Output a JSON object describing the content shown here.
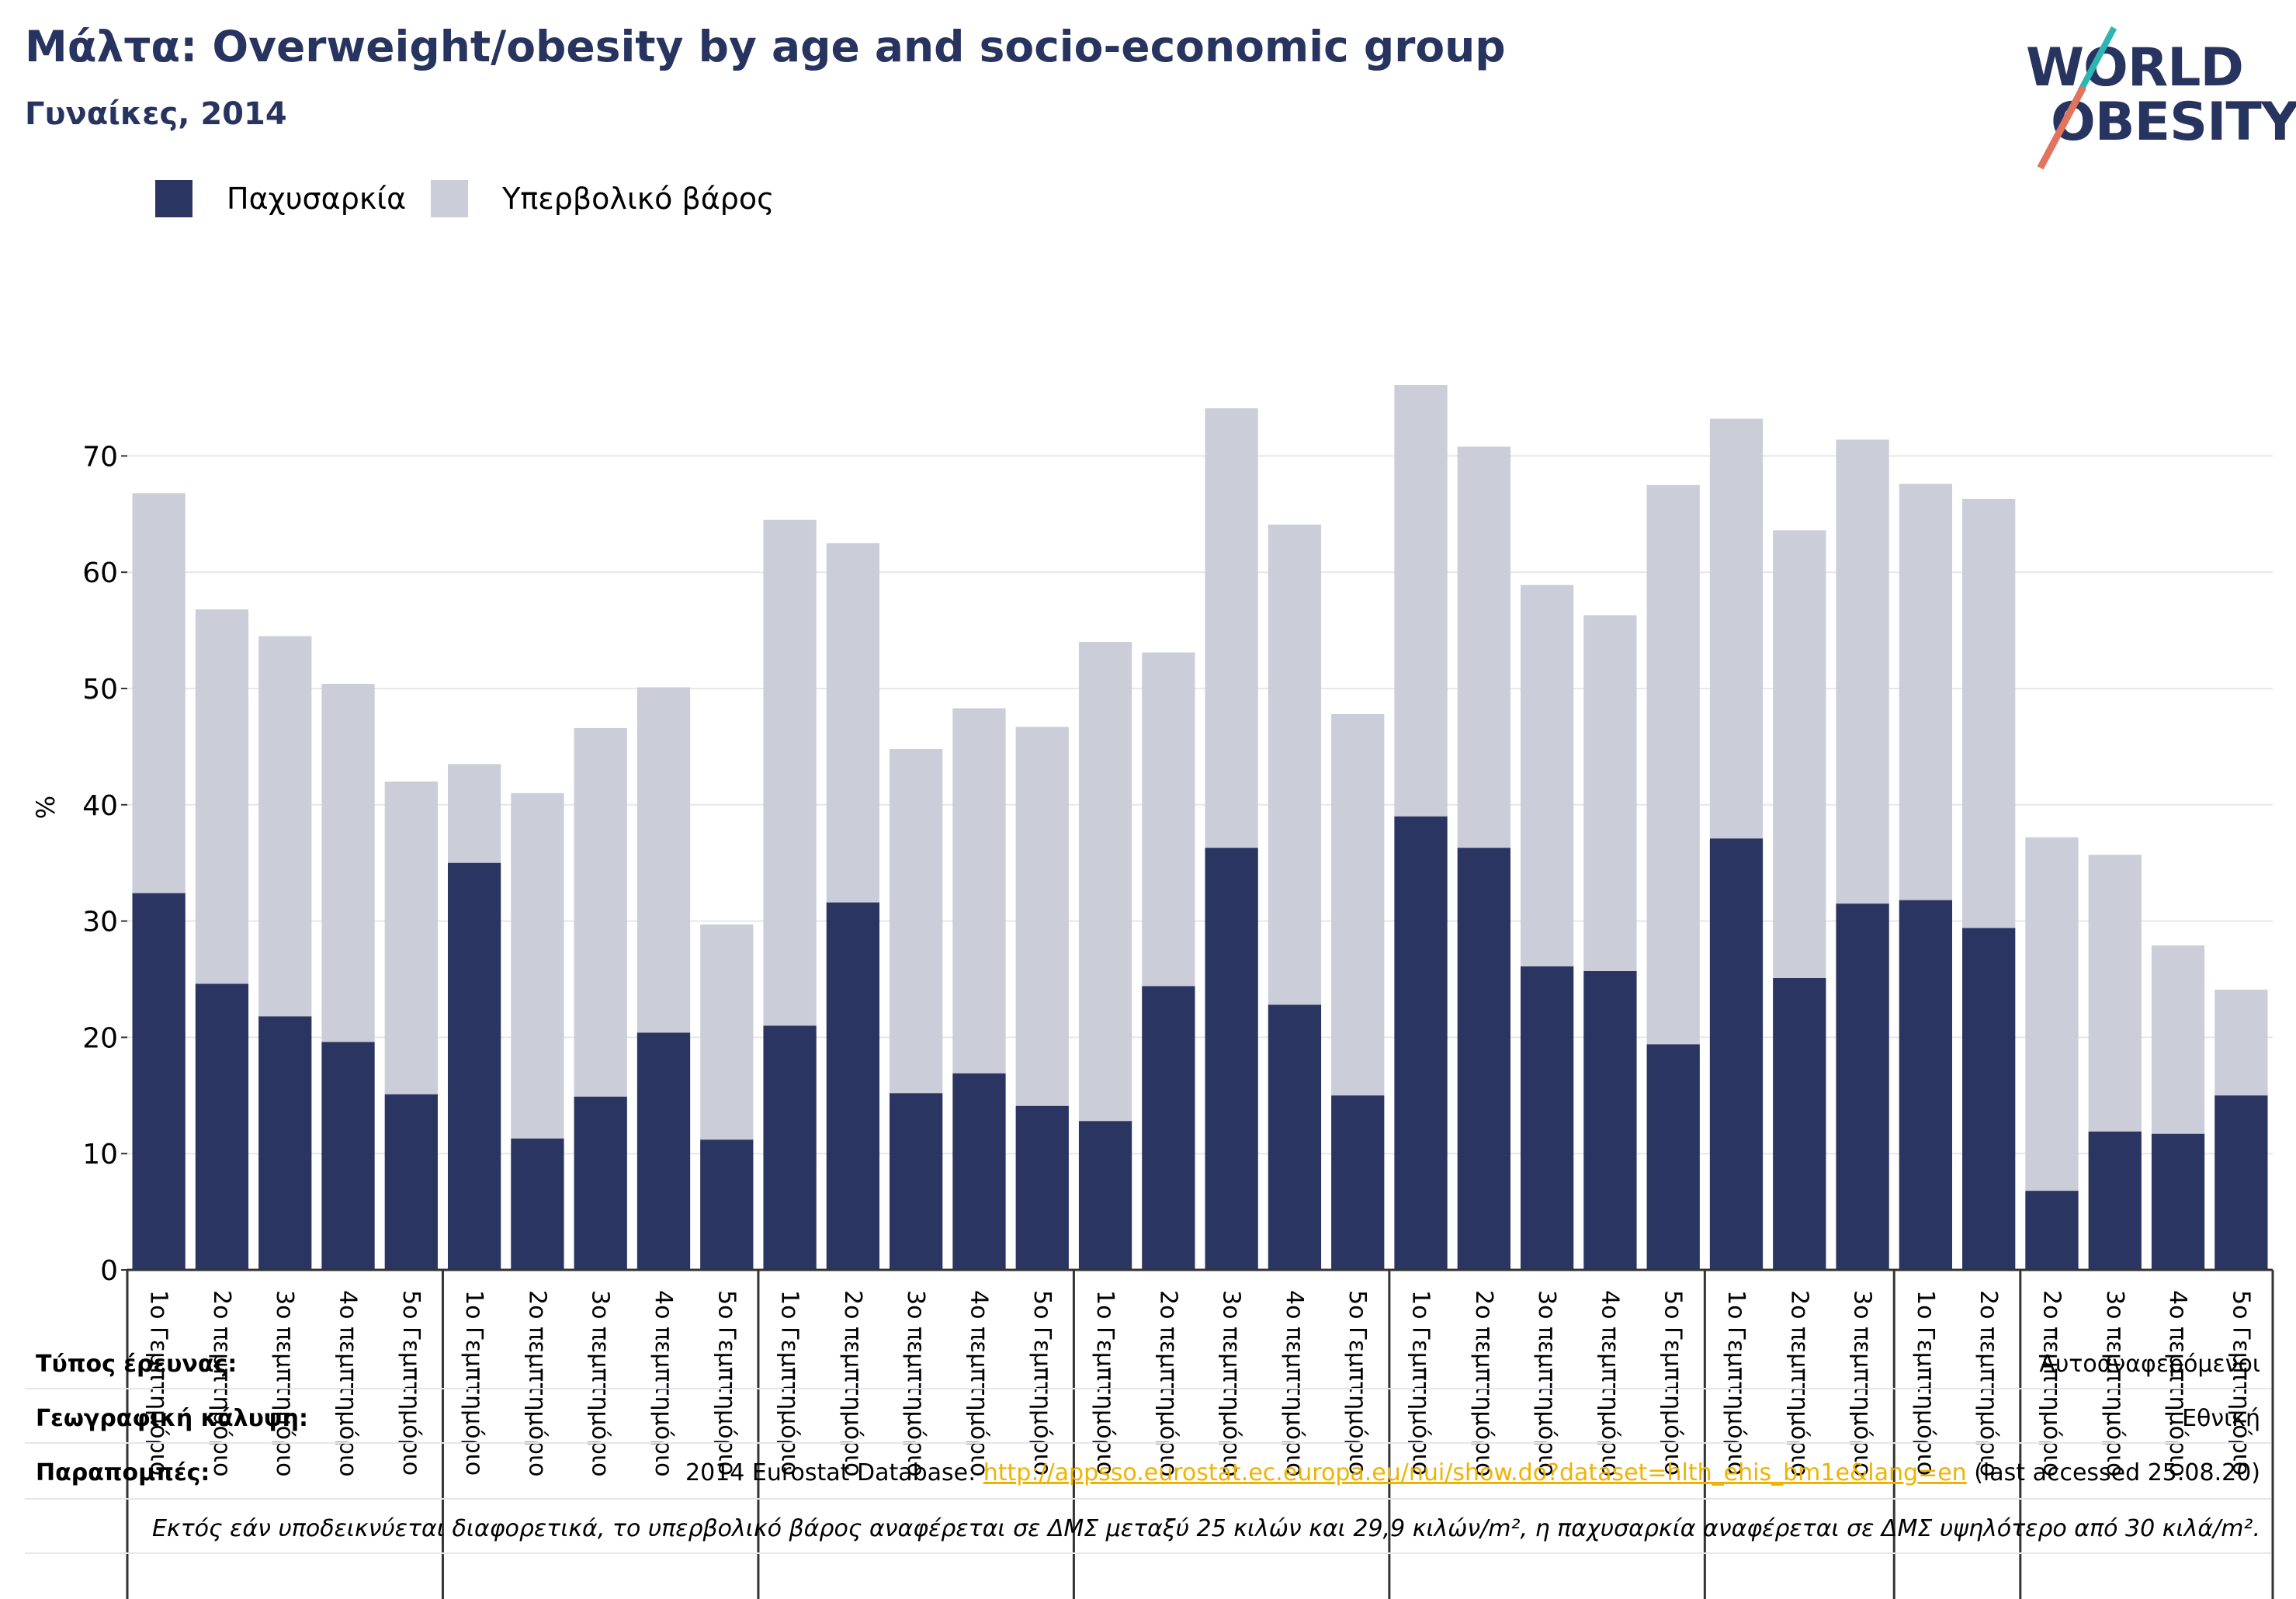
{
  "title": "Μάλτα: Overweight/obesity by age and socio-economic group",
  "subtitle": "Γυναίκες, 2014",
  "legend": {
    "obesity": "Παχυσαρκία",
    "overweight": "Υπερβολικό βάρος"
  },
  "colors": {
    "obesity": "#2b3561",
    "overweight": "#cbcdd9",
    "title": "#283460",
    "link": "#f0b300"
  },
  "logo": {
    "line1": "WORLD",
    "line2": "OBESITY"
  },
  "chart_data": {
    "type": "bar",
    "stacked": true,
    "ylabel": "%",
    "ylim": [
      0,
      76
    ],
    "yticks": [
      0,
      10,
      20,
      30,
      40,
      50,
      60,
      70
    ],
    "grid": true,
    "legend_position": "top-left",
    "categories": [
      "1ο Γεμπτημόριο",
      "2ο πεμπτημόριο",
      "3ο πεμπτημόριο",
      "4ο πεμπτημόριο",
      "5ο Γεμπτημόριο",
      "1ο Γεμπτημόριο",
      "2ο πεμπτημόριο",
      "3ο πεμπτημόριο",
      "4ο πεμπτημόριο",
      "5ο Γεμπτημόριο",
      "1ο Γεμπτημόριο",
      "2ο πεμπτημόριο",
      "3ο πεμπτημόριο",
      "4ο πεμπτημόριο",
      "5ο Γεμπτημόριο",
      "1ο Γεμπτημόριο",
      "2ο πεμπτημόριο",
      "3ο πεμπτημόριο",
      "4ο πεμπτημόριο",
      "5ο Γεμπτημόριο",
      "1ο Γεμπτημόριο",
      "2ο πεμπτημόριο",
      "3ο πεμπτημόριο",
      "4ο πεμπτημόριο",
      "5ο Γεμπτημόριο",
      "1ο Γεμπτημόριο",
      "2ο πεμπτημόριο",
      "3ο πεμπτημόριο",
      "1ο Γεμπτημόριο",
      "2ο πεμπτημόριο",
      "2ο πεμπτημόριο",
      "3ο πεμπτημόριο",
      "4ο πεμπτημόριο",
      "5ο Γεμπτημόριο"
    ],
    "group_sizes": [
      5,
      5,
      5,
      5,
      5,
      3,
      2,
      4
    ],
    "series": [
      {
        "name": "Παχυσαρκία",
        "values": [
          32.4,
          24.6,
          21.8,
          19.6,
          15.1,
          35.0,
          11.3,
          14.9,
          20.4,
          11.2,
          21.0,
          31.6,
          15.2,
          16.9,
          14.1,
          12.8,
          24.4,
          36.3,
          22.8,
          15.0,
          39.0,
          36.3,
          26.1,
          25.7,
          19.4,
          37.1,
          25.1,
          31.5,
          31.8,
          29.4,
          6.8,
          11.9,
          11.7,
          15.0
        ]
      },
      {
        "name": "Υπερβολικό βάρος",
        "values": [
          34.4,
          32.2,
          32.7,
          30.8,
          26.9,
          8.5,
          29.7,
          31.7,
          29.7,
          18.5,
          43.5,
          30.9,
          29.6,
          31.4,
          32.6,
          41.2,
          28.7,
          37.8,
          41.3,
          32.8,
          37.1,
          34.5,
          32.8,
          30.6,
          48.1,
          36.1,
          38.5,
          39.9,
          35.8,
          36.9,
          30.4,
          23.8,
          16.2,
          9.1
        ]
      }
    ]
  },
  "meta": {
    "survey_type_label": "Τύπος έρευνας:",
    "survey_type_value": "Αυτοαναφερόμενοι",
    "coverage_label": "Γεωγραφική κάλυψη:",
    "coverage_value": "Εθνική",
    "refs_label": "Παραπομπές:",
    "refs_prefix": "2014 Eurostat Database: ",
    "refs_link": "http://appsso.eurostat.ec.europa.eu/nui/show.do?dataset=hlth_ehis_bm1e&lang=en",
    "refs_suffix": " (last accessed 25.08.20)",
    "note": "Εκτός εάν υποδεικνύεται διαφορετικά, το υπερβολικό βάρος αναφέρεται σε ΔΜΣ μεταξύ 25 κιλών και 29,9 κιλών/m², η παχυσαρκία αναφέρεται σε ΔΜΣ υψηλότερο από 30 κιλά/m²."
  }
}
